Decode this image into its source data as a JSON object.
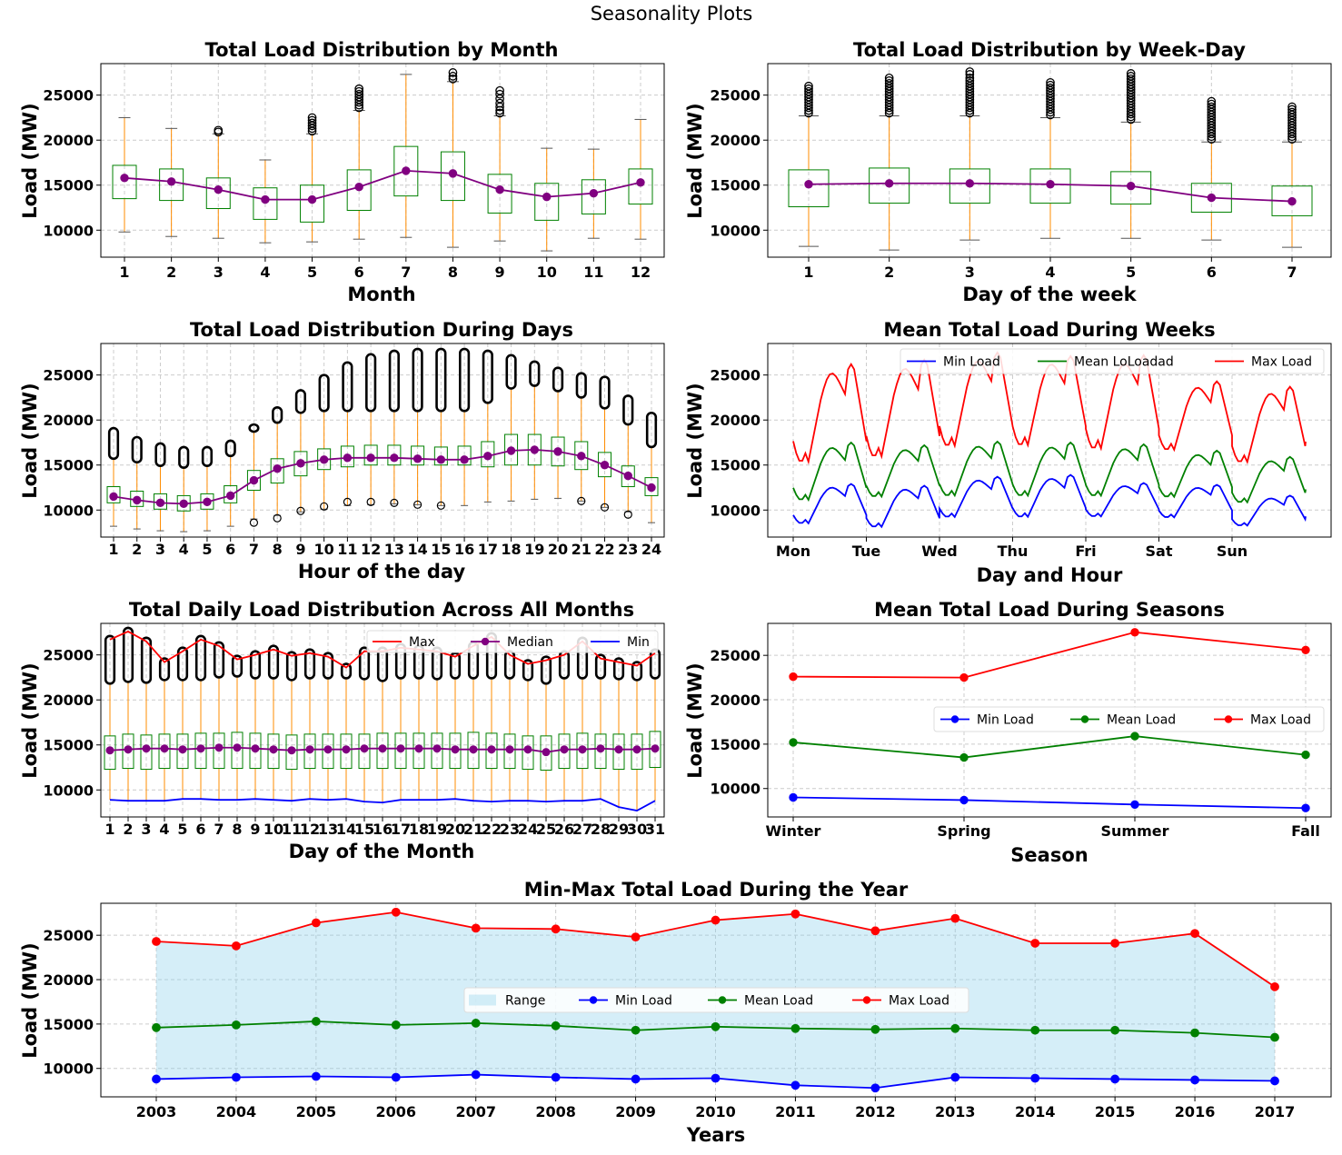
{
  "suptitle": "Seasonality Plots",
  "chart_data": [
    {
      "id": "month",
      "type": "box",
      "title": "Total Load Distribution by Month",
      "xlabel": "Month",
      "ylabel": "Load (MW)",
      "ylim": [
        7000,
        28500
      ],
      "yticks": [
        10000,
        15000,
        20000,
        25000
      ],
      "categories": [
        "1",
        "2",
        "3",
        "4",
        "5",
        "6",
        "7",
        "8",
        "9",
        "10",
        "11",
        "12"
      ],
      "boxes": [
        {
          "whislo": 9800,
          "q1": 13500,
          "med": 15800,
          "q3": 17200,
          "whishi": 22500,
          "mean": 15800,
          "fliers": []
        },
        {
          "whislo": 9300,
          "q1": 13300,
          "med": 15400,
          "q3": 16800,
          "whishi": 21300,
          "mean": 15400,
          "fliers": []
        },
        {
          "whislo": 9100,
          "q1": 12400,
          "med": 14500,
          "q3": 15800,
          "whishi": 20700,
          "mean": 14500,
          "fliers": [
            20900,
            21100
          ]
        },
        {
          "whislo": 8600,
          "q1": 11200,
          "med": 13400,
          "q3": 14700,
          "whishi": 17800,
          "mean": 13400,
          "fliers": []
        },
        {
          "whislo": 8700,
          "q1": 10900,
          "med": 13400,
          "q3": 15000,
          "whishi": 20700,
          "mean": 13400,
          "fliers": [
            21000,
            21300,
            21600,
            21900,
            22200,
            22500
          ]
        },
        {
          "whislo": 9000,
          "q1": 12200,
          "med": 14800,
          "q3": 16700,
          "whishi": 23300,
          "mean": 14800,
          "fliers": [
            23600,
            23900,
            24200,
            24500,
            24800,
            25100,
            25400,
            25700
          ]
        },
        {
          "whislo": 9200,
          "q1": 13800,
          "med": 16600,
          "q3": 19300,
          "whishi": 27300,
          "mean": 16600,
          "fliers": []
        },
        {
          "whislo": 8100,
          "q1": 13300,
          "med": 16300,
          "q3": 18700,
          "whishi": 26500,
          "mean": 16300,
          "fliers": [
            26800,
            27100,
            27500
          ]
        },
        {
          "whislo": 8800,
          "q1": 11900,
          "med": 14500,
          "q3": 16200,
          "whishi": 22700,
          "mean": 14500,
          "fliers": [
            23000,
            23300,
            23700,
            24100,
            24600,
            25100,
            25500
          ]
        },
        {
          "whislo": 7700,
          "q1": 11100,
          "med": 13700,
          "q3": 15200,
          "whishi": 19100,
          "mean": 13700,
          "fliers": []
        },
        {
          "whislo": 9100,
          "q1": 11800,
          "med": 14100,
          "q3": 15600,
          "whishi": 19000,
          "mean": 14100,
          "fliers": []
        },
        {
          "whislo": 9000,
          "q1": 12900,
          "med": 15300,
          "q3": 16800,
          "whishi": 22300,
          "mean": 15300,
          "fliers": []
        }
      ]
    },
    {
      "id": "weekday",
      "type": "box",
      "title": "Total Load Distribution by Week-Day",
      "xlabel": "Day of the week",
      "ylabel": "Load (MW)",
      "ylim": [
        7000,
        28500
      ],
      "yticks": [
        10000,
        15000,
        20000,
        25000
      ],
      "categories": [
        "1",
        "2",
        "3",
        "4",
        "5",
        "6",
        "7"
      ],
      "boxes": [
        {
          "whislo": 8200,
          "q1": 12600,
          "med": 15100,
          "q3": 16700,
          "whishi": 22700,
          "mean": 15100,
          "fliers": [
            23000,
            23300,
            23600,
            23900,
            24200,
            24500,
            24800,
            25100,
            25400,
            25700,
            26000
          ]
        },
        {
          "whislo": 7800,
          "q1": 13000,
          "med": 15200,
          "q3": 16900,
          "whishi": 22700,
          "mean": 15200,
          "fliers": [
            23000,
            23300,
            23600,
            23900,
            24200,
            24500,
            24800,
            25100,
            25400,
            25700,
            26000,
            26300,
            26600,
            26900
          ]
        },
        {
          "whislo": 8900,
          "q1": 13000,
          "med": 15200,
          "q3": 16800,
          "whishi": 22700,
          "mean": 15200,
          "fliers": [
            23000,
            23300,
            23600,
            23900,
            24200,
            24500,
            24800,
            25100,
            25400,
            25700,
            26000,
            26300,
            26600,
            26900,
            27300,
            27600
          ]
        },
        {
          "whislo": 9100,
          "q1": 13000,
          "med": 15100,
          "q3": 16800,
          "whishi": 22500,
          "mean": 15100,
          "fliers": [
            22800,
            23100,
            23400,
            23700,
            24000,
            24300,
            24600,
            24900,
            25200,
            25500,
            25800,
            26100,
            26400
          ]
        },
        {
          "whislo": 9100,
          "q1": 12900,
          "med": 14900,
          "q3": 16500,
          "whishi": 22000,
          "mean": 14900,
          "fliers": [
            22300,
            22600,
            22900,
            23200,
            23500,
            23800,
            24100,
            24400,
            24700,
            25000,
            25300,
            25600,
            25900,
            26200,
            26500,
            26800,
            27100,
            27400
          ]
        },
        {
          "whislo": 8900,
          "q1": 12000,
          "med": 13600,
          "q3": 15200,
          "whishi": 19800,
          "mean": 13600,
          "fliers": [
            20100,
            20400,
            20700,
            21000,
            21300,
            21600,
            21900,
            22200,
            22500,
            22800,
            23100,
            23400,
            23700,
            24000,
            24300
          ]
        },
        {
          "whislo": 8100,
          "q1": 11600,
          "med": 13200,
          "q3": 14900,
          "whishi": 19800,
          "mean": 13200,
          "fliers": [
            20100,
            20400,
            20700,
            21000,
            21300,
            21600,
            21900,
            22200,
            22500,
            22800,
            23100,
            23400,
            23700
          ]
        }
      ]
    },
    {
      "id": "hour",
      "type": "box",
      "title": "Total Load Distribution During Days",
      "xlabel": "Hour of the day",
      "ylabel": "Load (MW)",
      "ylim": [
        7000,
        28500
      ],
      "yticks": [
        10000,
        15000,
        20000,
        25000
      ],
      "categories": [
        "1",
        "2",
        "3",
        "4",
        "5",
        "6",
        "7",
        "8",
        "9",
        "10",
        "11",
        "12",
        "13",
        "14",
        "15",
        "16",
        "17",
        "18",
        "19",
        "20",
        "21",
        "22",
        "23",
        "24"
      ],
      "medians": [
        11500,
        11100,
        10800,
        10700,
        10900,
        11600,
        13300,
        14600,
        15200,
        15600,
        15800,
        15800,
        15800,
        15700,
        15600,
        15600,
        16000,
        16600,
        16700,
        16500,
        16000,
        15000,
        13800,
        12500
      ],
      "q1": [
        10800,
        10400,
        10100,
        9900,
        10100,
        10800,
        12200,
        13000,
        13800,
        14500,
        14800,
        15000,
        15000,
        15000,
        15000,
        15000,
        14800,
        15000,
        15000,
        14900,
        14500,
        13700,
        12600,
        11600
      ],
      "q3": [
        12600,
        12100,
        11800,
        11600,
        11800,
        12700,
        14400,
        15700,
        16500,
        16800,
        17100,
        17200,
        17200,
        17100,
        17000,
        17100,
        17600,
        18400,
        18400,
        18100,
        17600,
        16400,
        14900,
        13600
      ],
      "whislo": [
        8200,
        7900,
        7700,
        7600,
        7700,
        8200,
        9000,
        9400,
        9800,
        10100,
        10500,
        10600,
        10700,
        10600,
        10500,
        10500,
        10900,
        11000,
        11200,
        11300,
        11000,
        10300,
        9800,
        8600
      ],
      "whishi": [
        15700,
        15300,
        14900,
        14700,
        14900,
        16000,
        18700,
        19700,
        20800,
        21000,
        21000,
        21000,
        21000,
        21000,
        21000,
        21000,
        21900,
        23500,
        23800,
        23200,
        22500,
        21300,
        19500,
        17000
      ],
      "flierhi": [
        18700,
        17700,
        17000,
        16600,
        16600,
        17300,
        19100,
        21000,
        22900,
        24600,
        26000,
        26900,
        27300,
        27500,
        27500,
        27500,
        27300,
        26800,
        26100,
        25400,
        24800,
        24400,
        22300,
        20400
      ],
      "flierlo": [
        null,
        null,
        null,
        null,
        null,
        null,
        8600,
        9100,
        9900,
        10400,
        10900,
        10900,
        10800,
        10600,
        10500,
        null,
        null,
        null,
        null,
        null,
        11000,
        10300,
        9500,
        null
      ]
    },
    {
      "id": "week",
      "type": "line",
      "title": "Mean Total Load During Weeks",
      "xlabel": "Day and Hour",
      "ylabel": "Load (MW)",
      "ylim": [
        7000,
        28500
      ],
      "yticks": [
        10000,
        15000,
        20000,
        25000
      ],
      "xtick_labels": [
        "Mon",
        "Tue",
        "Wed",
        "Thu",
        "Fri",
        "Sat",
        "Sun"
      ],
      "legend": [
        "Min Load",
        "Mean LoLoadad",
        "Max Load"
      ],
      "series_daily_profile": {
        "min": [
          {
            "base": 8300,
            "peak": 12900
          },
          {
            "base": 7900,
            "peak": 12700
          },
          {
            "base": 9000,
            "peak": 13700
          },
          {
            "base": 9000,
            "peak": 13900
          },
          {
            "base": 9100,
            "peak": 13000
          },
          {
            "base": 9000,
            "peak": 12800
          },
          {
            "base": 8100,
            "peak": 11600
          }
        ],
        "mean": [
          {
            "base": 10800,
            "peak": 17500
          },
          {
            "base": 11200,
            "peak": 17200
          },
          {
            "base": 11300,
            "peak": 17600
          },
          {
            "base": 11300,
            "peak": 17500
          },
          {
            "base": 11300,
            "peak": 17300
          },
          {
            "base": 11200,
            "peak": 16600
          },
          {
            "base": 10600,
            "peak": 15900
          }
        ],
        "max": [
          {
            "base": 14800,
            "peak": 26200
          },
          {
            "base": 15400,
            "peak": 26700
          },
          {
            "base": 16600,
            "peak": 27500
          },
          {
            "base": 16700,
            "peak": 27100
          },
          {
            "base": 16300,
            "peak": 27200
          },
          {
            "base": 16300,
            "peak": 24300
          },
          {
            "base": 14900,
            "peak": 23700
          }
        ]
      },
      "end_values": {
        "min": 9300,
        "mean": 12300,
        "max": 17600
      }
    },
    {
      "id": "daymonth",
      "type": "box",
      "title": "Total Daily Load Distribution Across All Months",
      "xlabel": "Day of the Month",
      "ylabel": "Load (MW)",
      "ylim": [
        7000,
        28500
      ],
      "yticks": [
        10000,
        15000,
        20000,
        25000
      ],
      "categories": [
        "1",
        "2",
        "3",
        "4",
        "5",
        "6",
        "7",
        "8",
        "9",
        "10",
        "11",
        "12",
        "13",
        "14",
        "15",
        "16",
        "17",
        "18",
        "19",
        "20",
        "21",
        "22",
        "23",
        "24",
        "25",
        "26",
        "27",
        "28",
        "29",
        "30",
        "31"
      ],
      "legend": [
        "Max",
        "Median",
        "Min"
      ],
      "max": [
        26700,
        27600,
        26500,
        24200,
        25400,
        26700,
        26000,
        24500,
        25000,
        25600,
        24900,
        25200,
        24800,
        23600,
        25400,
        25400,
        25800,
        25600,
        25400,
        24800,
        26000,
        27000,
        25000,
        24000,
        24400,
        25000,
        26500,
        24600,
        24200,
        23800,
        25200
      ],
      "median": [
        14400,
        14500,
        14600,
        14600,
        14500,
        14600,
        14700,
        14700,
        14600,
        14500,
        14400,
        14500,
        14500,
        14500,
        14600,
        14600,
        14600,
        14600,
        14600,
        14500,
        14500,
        14500,
        14500,
        14500,
        14200,
        14500,
        14500,
        14600,
        14500,
        14500,
        14600
      ],
      "min": [
        8900,
        8800,
        8800,
        8800,
        9000,
        9000,
        8900,
        8900,
        9000,
        8900,
        8800,
        9000,
        8900,
        9000,
        8700,
        8600,
        8900,
        8900,
        8900,
        9000,
        8800,
        8700,
        8800,
        8800,
        8700,
        8800,
        8800,
        9000,
        8100,
        7700,
        8800
      ],
      "q1": [
        12300,
        12400,
        12300,
        12400,
        12400,
        12400,
        12400,
        12400,
        12400,
        12400,
        12300,
        12400,
        12400,
        12400,
        12400,
        12400,
        12400,
        12400,
        12400,
        12400,
        12400,
        12400,
        12400,
        12300,
        12200,
        12400,
        12400,
        12400,
        12300,
        12300,
        12500
      ],
      "q3": [
        16000,
        16200,
        16100,
        16200,
        16200,
        16300,
        16300,
        16400,
        16300,
        16200,
        16100,
        16200,
        16200,
        16200,
        16200,
        16300,
        16300,
        16300,
        16300,
        16300,
        16400,
        16300,
        16200,
        16000,
        16000,
        16200,
        16300,
        16200,
        16200,
        16200,
        16500
      ],
      "flier_start": [
        21800,
        22000,
        21900,
        22200,
        22200,
        22200,
        22500,
        22600,
        22400,
        22400,
        22200,
        22400,
        22400,
        22400,
        22300,
        22100,
        22400,
        22400,
        22300,
        22400,
        22400,
        22400,
        22400,
        22200,
        21800,
        22400,
        22400,
        22400,
        22300,
        22200,
        22400
      ]
    },
    {
      "id": "season",
      "type": "line",
      "title": "Mean Total Load During Seasons",
      "xlabel": "Season",
      "ylabel": "Load (MW)",
      "ylim": [
        6800,
        28600
      ],
      "yticks": [
        10000,
        15000,
        20000,
        25000
      ],
      "categories": [
        "Winter",
        "Spring",
        "Summer",
        "Fall"
      ],
      "legend": [
        "Min Load",
        "Mean Load",
        "Max Load"
      ],
      "series": [
        {
          "name": "Min Load",
          "values": [
            9000,
            8700,
            8200,
            7800
          ]
        },
        {
          "name": "Mean Load",
          "values": [
            15200,
            13500,
            15900,
            13800
          ]
        },
        {
          "name": "Max Load",
          "values": [
            22600,
            22500,
            27600,
            25600
          ]
        }
      ]
    },
    {
      "id": "year",
      "type": "area",
      "title": "Min-Max Total Load During the Year",
      "xlabel": "Years",
      "ylabel": "Load (MW)",
      "ylim": [
        6800,
        28600
      ],
      "yticks": [
        10000,
        15000,
        20000,
        25000
      ],
      "categories": [
        "2003",
        "2004",
        "2005",
        "2006",
        "2007",
        "2008",
        "2009",
        "2010",
        "2011",
        "2012",
        "2013",
        "2014",
        "2015",
        "2016",
        "2017"
      ],
      "legend": [
        "Range",
        "Min Load",
        "Mean Load",
        "Max Load"
      ],
      "series": [
        {
          "name": "Min Load",
          "values": [
            8800,
            9000,
            9100,
            9000,
            9300,
            9000,
            8800,
            8900,
            8100,
            7800,
            9000,
            8900,
            8800,
            8700,
            8600
          ]
        },
        {
          "name": "Mean Load",
          "values": [
            14600,
            14900,
            15300,
            14900,
            15100,
            14800,
            14300,
            14700,
            14500,
            14400,
            14500,
            14300,
            14300,
            14000,
            13500
          ]
        },
        {
          "name": "Max Load",
          "values": [
            24300,
            23800,
            26400,
            27600,
            25800,
            25700,
            24800,
            26700,
            27400,
            25500,
            26900,
            24100,
            24100,
            25200,
            19200
          ]
        }
      ]
    }
  ],
  "colors": {
    "min": "#0000ff",
    "mean": "#008000",
    "max": "#ff0000",
    "median_marker": "#800080",
    "whisker": "#ff8c00",
    "box": "#008000",
    "range_fill": "#87ceeb",
    "grid": "#cccccc"
  }
}
